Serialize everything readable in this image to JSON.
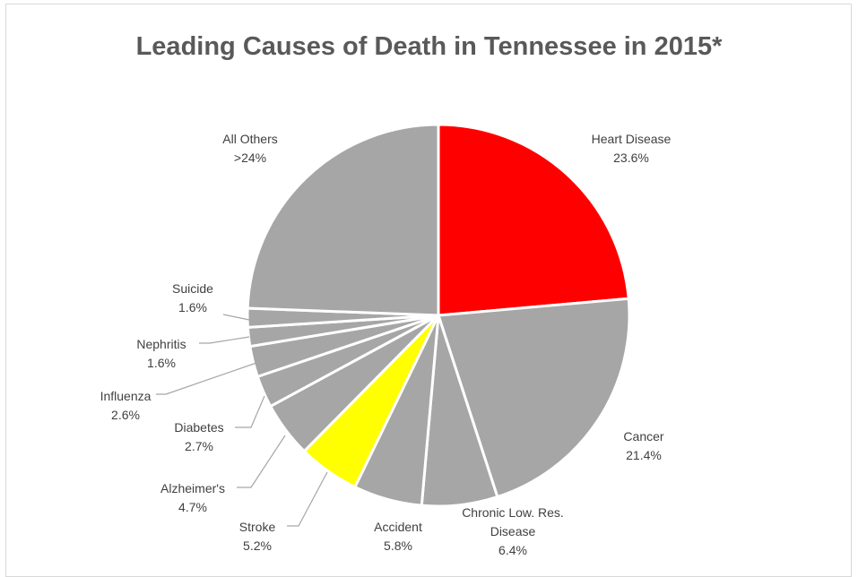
{
  "chart_data": {
    "type": "pie",
    "title": "Leading Causes of Death in Tennessee in 2015*",
    "slices": [
      {
        "name": "Heart Disease",
        "value_label": "23.6%",
        "value": 23.6,
        "color": "#ff0000"
      },
      {
        "name": "Cancer",
        "value_label": "21.4%",
        "value": 21.4,
        "color": "#a6a6a6"
      },
      {
        "name": "Chronic Low. Res. Disease",
        "value_label": "6.4%",
        "value": 6.4,
        "color": "#a6a6a6"
      },
      {
        "name": "Accident",
        "value_label": "5.8%",
        "value": 5.8,
        "color": "#a6a6a6"
      },
      {
        "name": "Stroke",
        "value_label": "5.2%",
        "value": 5.2,
        "color": "#ffff00"
      },
      {
        "name": "Alzheimer's",
        "value_label": "4.7%",
        "value": 4.7,
        "color": "#a6a6a6"
      },
      {
        "name": "Diabetes",
        "value_label": "2.7%",
        "value": 2.7,
        "color": "#a6a6a6"
      },
      {
        "name": "Influenza",
        "value_label": "2.6%",
        "value": 2.6,
        "color": "#a6a6a6"
      },
      {
        "name": "Nephritis",
        "value_label": "1.6%",
        "value": 1.6,
        "color": "#a6a6a6"
      },
      {
        "name": "Suicide",
        "value_label": "1.6%",
        "value": 1.6,
        "color": "#a6a6a6"
      },
      {
        "name": "All Others",
        "value_label": ">24%",
        "value": 24.4,
        "color": "#a6a6a6"
      }
    ]
  }
}
